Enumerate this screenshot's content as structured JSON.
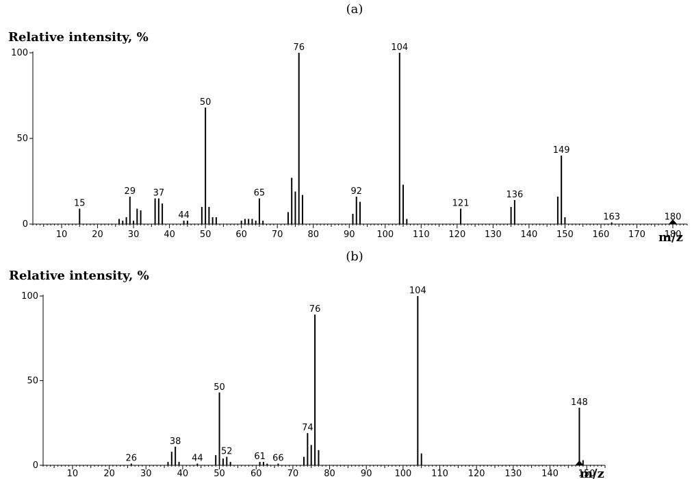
{
  "chart_data": [
    {
      "type": "bar",
      "panel_label": "(a)",
      "ylabel": "Relative intensity, %",
      "xlabel": "m/z",
      "xlim": [
        2,
        184
      ],
      "ylim": [
        0,
        100
      ],
      "x_ticks": [
        10,
        20,
        30,
        40,
        50,
        60,
        70,
        80,
        90,
        100,
        110,
        120,
        130,
        140,
        150,
        160,
        170,
        180
      ],
      "y_ticks": [
        0,
        50,
        100
      ],
      "marker_at": 180,
      "peaks": [
        {
          "x": 15,
          "y": 9,
          "label": "15"
        },
        {
          "x": 26,
          "y": 3
        },
        {
          "x": 27,
          "y": 2
        },
        {
          "x": 28,
          "y": 4
        },
        {
          "x": 29,
          "y": 16,
          "label": "29"
        },
        {
          "x": 30,
          "y": 2
        },
        {
          "x": 31,
          "y": 9
        },
        {
          "x": 32,
          "y": 8
        },
        {
          "x": 36,
          "y": 15
        },
        {
          "x": 37,
          "y": 15,
          "label": "37"
        },
        {
          "x": 38,
          "y": 12
        },
        {
          "x": 44,
          "y": 2,
          "label": "44"
        },
        {
          "x": 45,
          "y": 2
        },
        {
          "x": 49,
          "y": 10
        },
        {
          "x": 50,
          "y": 68,
          "label": "50"
        },
        {
          "x": 51,
          "y": 10
        },
        {
          "x": 52,
          "y": 4
        },
        {
          "x": 53,
          "y": 4
        },
        {
          "x": 60,
          "y": 2
        },
        {
          "x": 61,
          "y": 3
        },
        {
          "x": 62,
          "y": 3
        },
        {
          "x": 63,
          "y": 3
        },
        {
          "x": 64,
          "y": 2
        },
        {
          "x": 65,
          "y": 15,
          "label": "65"
        },
        {
          "x": 66,
          "y": 2
        },
        {
          "x": 73,
          "y": 7
        },
        {
          "x": 74,
          "y": 27
        },
        {
          "x": 75,
          "y": 19
        },
        {
          "x": 76,
          "y": 100,
          "label": "76"
        },
        {
          "x": 77,
          "y": 17
        },
        {
          "x": 91,
          "y": 6
        },
        {
          "x": 92,
          "y": 16,
          "label": "92"
        },
        {
          "x": 93,
          "y": 13
        },
        {
          "x": 104,
          "y": 100,
          "label": "104"
        },
        {
          "x": 105,
          "y": 23
        },
        {
          "x": 106,
          "y": 3
        },
        {
          "x": 121,
          "y": 9,
          "label": "121"
        },
        {
          "x": 135,
          "y": 10
        },
        {
          "x": 136,
          "y": 14,
          "label": "136"
        },
        {
          "x": 148,
          "y": 16
        },
        {
          "x": 149,
          "y": 40,
          "label": "149"
        },
        {
          "x": 150,
          "y": 4
        },
        {
          "x": 163,
          "y": 1,
          "label": "163"
        },
        {
          "x": 180,
          "y": 1,
          "label": "180"
        }
      ]
    },
    {
      "type": "bar",
      "panel_label": "(b)",
      "ylabel": "Relative intensity, %",
      "xlabel": "m/z",
      "xlim": [
        2,
        155
      ],
      "ylim": [
        0,
        100
      ],
      "x_ticks": [
        10,
        20,
        30,
        40,
        50,
        60,
        70,
        80,
        90,
        100,
        110,
        120,
        130,
        140,
        150
      ],
      "y_ticks": [
        0,
        50,
        100
      ],
      "marker_at": 148,
      "peaks": [
        {
          "x": 26,
          "y": 1,
          "label": "26"
        },
        {
          "x": 36,
          "y": 2
        },
        {
          "x": 37,
          "y": 8
        },
        {
          "x": 38,
          "y": 11,
          "label": "38"
        },
        {
          "x": 39,
          "y": 2
        },
        {
          "x": 44,
          "y": 1,
          "label": "44"
        },
        {
          "x": 49,
          "y": 6
        },
        {
          "x": 50,
          "y": 43,
          "label": "50"
        },
        {
          "x": 51,
          "y": 4
        },
        {
          "x": 52,
          "y": 5,
          "label": "52"
        },
        {
          "x": 53,
          "y": 2
        },
        {
          "x": 61,
          "y": 2,
          "label": "61"
        },
        {
          "x": 62,
          "y": 2
        },
        {
          "x": 63,
          "y": 1
        },
        {
          "x": 66,
          "y": 1,
          "label": "66"
        },
        {
          "x": 73,
          "y": 5
        },
        {
          "x": 74,
          "y": 19,
          "label": "74"
        },
        {
          "x": 75,
          "y": 12
        },
        {
          "x": 76,
          "y": 89,
          "label": "76"
        },
        {
          "x": 77,
          "y": 9
        },
        {
          "x": 104,
          "y": 100,
          "label": "104"
        },
        {
          "x": 105,
          "y": 7
        },
        {
          "x": 148,
          "y": 34,
          "label": "148"
        },
        {
          "x": 149,
          "y": 3
        }
      ]
    }
  ]
}
